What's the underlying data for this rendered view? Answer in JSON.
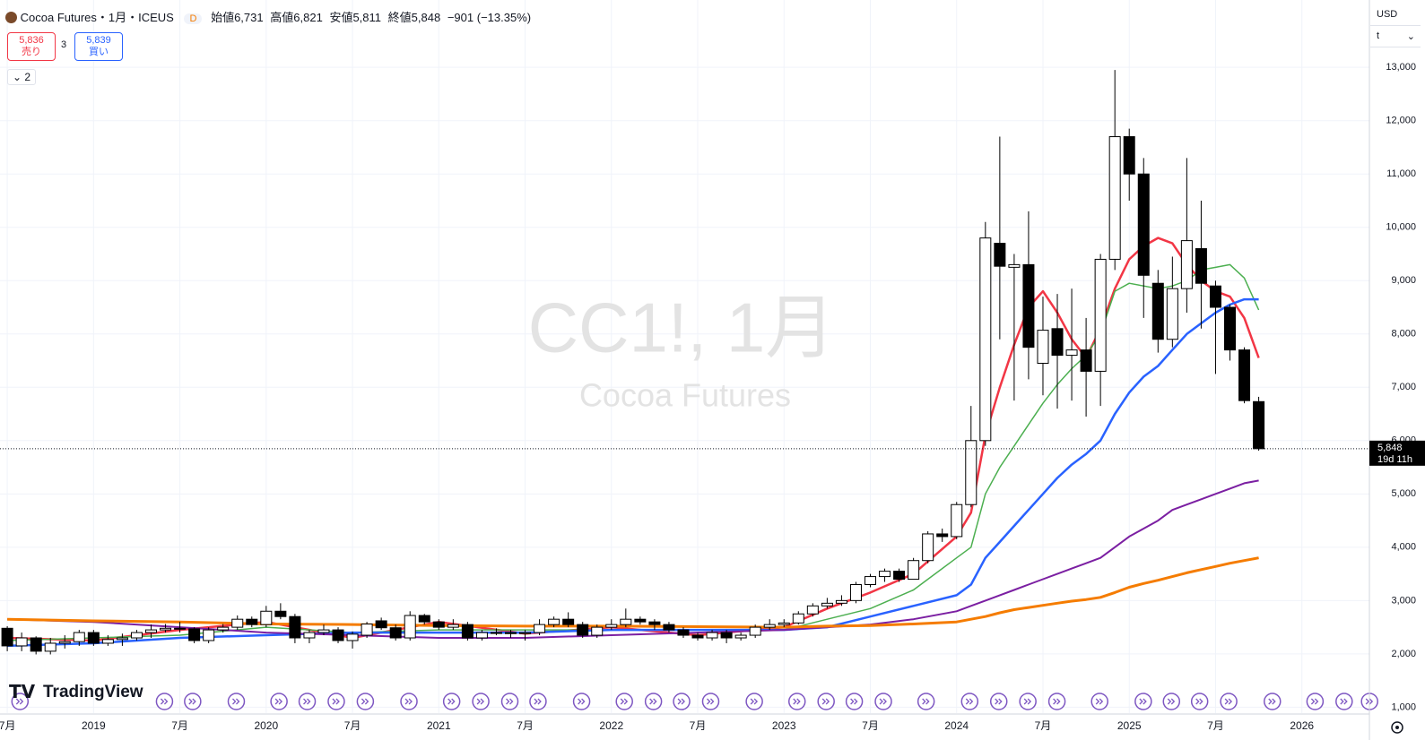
{
  "ui": {
    "symbol": "Cocoa Futures・1月・ICEUS",
    "badge": "D",
    "open_label": "始値",
    "open": "6,731",
    "high_label": "高値",
    "high": "6,821",
    "low_label": "安値",
    "low": "5,811",
    "close_label": "終値",
    "close": "5,848",
    "change": "−901 (−13.35%)",
    "sell_price": "5,836",
    "sell_label": "売り",
    "spread": "3",
    "buy_price": "5,839",
    "buy_label": "買い",
    "indicators_count": "2",
    "watermark_symbol": "CC1!, 1月",
    "watermark_name": "Cocoa Futures",
    "currency": "USD",
    "unit": "t",
    "last_price": "5,848",
    "countdown": "19d 11h",
    "logo": "TradingView"
  },
  "chart_data": {
    "type": "candlestick",
    "up_color": "#ffffff",
    "down_color": "#000000",
    "grid": true,
    "ylim": [
      889,
      14263
    ],
    "yticks": [
      {
        "value": 1000,
        "label": "1,000"
      },
      {
        "value": 2000,
        "label": "2,000"
      },
      {
        "value": 3000,
        "label": "3,000"
      },
      {
        "value": 4000,
        "label": "4,000"
      },
      {
        "value": 5000,
        "label": "5,000"
      },
      {
        "value": 6000,
        "label": "6,000"
      },
      {
        "value": 7000,
        "label": "7,000"
      },
      {
        "value": 8000,
        "label": "8,000"
      },
      {
        "value": 9000,
        "label": "9,000"
      },
      {
        "value": 10000,
        "label": "10,000"
      },
      {
        "value": 11000,
        "label": "11,000"
      },
      {
        "value": 12000,
        "label": "12,000"
      },
      {
        "value": 13000,
        "label": "13,000"
      }
    ],
    "xticks": [
      {
        "value": "2018-07",
        "label": "7月"
      },
      {
        "value": "2019-01",
        "label": "2019"
      },
      {
        "value": "2019-07",
        "label": "7月"
      },
      {
        "value": "2020-01",
        "label": "2020"
      },
      {
        "value": "2020-07",
        "label": "7月"
      },
      {
        "value": "2021-01",
        "label": "2021"
      },
      {
        "value": "2021-07",
        "label": "7月"
      },
      {
        "value": "2022-01",
        "label": "2022"
      },
      {
        "value": "2022-07",
        "label": "7月"
      },
      {
        "value": "2023-01",
        "label": "2023"
      },
      {
        "value": "2023-07",
        "label": "7月"
      },
      {
        "value": "2024-01",
        "label": "2024"
      },
      {
        "value": "2024-07",
        "label": "7月"
      },
      {
        "value": "2025-01",
        "label": "2025"
      },
      {
        "value": "2025-07",
        "label": "7月"
      },
      {
        "value": "2026-01",
        "label": "2026"
      }
    ],
    "x": [
      "2018-07",
      "2018-08",
      "2018-09",
      "2018-10",
      "2018-11",
      "2018-12",
      "2019-01",
      "2019-02",
      "2019-03",
      "2019-04",
      "2019-05",
      "2019-06",
      "2019-07",
      "2019-08",
      "2019-09",
      "2019-10",
      "2019-11",
      "2019-12",
      "2020-01",
      "2020-02",
      "2020-03",
      "2020-04",
      "2020-05",
      "2020-06",
      "2020-07",
      "2020-08",
      "2020-09",
      "2020-10",
      "2020-11",
      "2020-12",
      "2021-01",
      "2021-02",
      "2021-03",
      "2021-04",
      "2021-05",
      "2021-06",
      "2021-07",
      "2021-08",
      "2021-09",
      "2021-10",
      "2021-11",
      "2021-12",
      "2022-01",
      "2022-02",
      "2022-03",
      "2022-04",
      "2022-05",
      "2022-06",
      "2022-07",
      "2022-08",
      "2022-09",
      "2022-10",
      "2022-11",
      "2022-12",
      "2023-01",
      "2023-02",
      "2023-03",
      "2023-04",
      "2023-05",
      "2023-06",
      "2023-07",
      "2023-08",
      "2023-09",
      "2023-10",
      "2023-11",
      "2023-12",
      "2024-01",
      "2024-02",
      "2024-03",
      "2024-04",
      "2024-05",
      "2024-06",
      "2024-07",
      "2024-08",
      "2024-09",
      "2024-10",
      "2024-11",
      "2024-12",
      "2025-01",
      "2025-02",
      "2025-03",
      "2025-04",
      "2025-05",
      "2025-06",
      "2025-07",
      "2025-08",
      "2025-09",
      "2025-10"
    ],
    "open": [
      2480,
      2150,
      2300,
      2050,
      2200,
      2230,
      2400,
      2200,
      2270,
      2300,
      2400,
      2450,
      2480,
      2470,
      2250,
      2450,
      2500,
      2650,
      2550,
      2800,
      2700,
      2300,
      2400,
      2450,
      2250,
      2350,
      2620,
      2490,
      2300,
      2720,
      2600,
      2500,
      2550,
      2300,
      2400,
      2400,
      2380,
      2400,
      2550,
      2650,
      2550,
      2350,
      2500,
      2550,
      2650,
      2600,
      2550,
      2450,
      2350,
      2300,
      2400,
      2300,
      2350,
      2500,
      2550,
      2580,
      2750,
      2900,
      2950,
      3000,
      3300,
      3450,
      3550,
      3400,
      3750,
      4250,
      4200,
      4800,
      6000,
      9700,
      9250,
      9300,
      7450,
      8100,
      7600,
      7700,
      7300,
      9400,
      11700,
      11000,
      8950,
      7900,
      8850,
      9600,
      8900,
      8500,
      7700,
      6731
    ],
    "high": [
      2520,
      2400,
      2330,
      2300,
      2350,
      2450,
      2450,
      2350,
      2380,
      2450,
      2550,
      2560,
      2600,
      2500,
      2500,
      2560,
      2720,
      2700,
      2900,
      2950,
      2750,
      2450,
      2550,
      2500,
      2420,
      2600,
      2680,
      2550,
      2800,
      2750,
      2650,
      2650,
      2600,
      2450,
      2480,
      2450,
      2450,
      2650,
      2700,
      2780,
      2600,
      2550,
      2650,
      2850,
      2700,
      2650,
      2600,
      2500,
      2400,
      2450,
      2450,
      2400,
      2550,
      2650,
      2650,
      2800,
      2950,
      3050,
      3100,
      3350,
      3500,
      3600,
      3600,
      3800,
      4300,
      4350,
      4850,
      6650,
      10100,
      11700,
      9500,
      10300,
      8700,
      8750,
      8850,
      8300,
      9500,
      12950,
      11850,
      11300,
      9200,
      9450,
      11300,
      10500,
      9000,
      8550,
      7750,
      6821
    ],
    "low": [
      2050,
      2050,
      1990,
      1990,
      2100,
      2150,
      2150,
      2150,
      2150,
      2250,
      2300,
      2400,
      2400,
      2200,
      2200,
      2400,
      2450,
      2500,
      2500,
      2650,
      2200,
      2200,
      2350,
      2200,
      2100,
      2300,
      2450,
      2250,
      2250,
      2550,
      2450,
      2450,
      2250,
      2250,
      2350,
      2300,
      2250,
      2350,
      2500,
      2500,
      2300,
      2300,
      2450,
      2500,
      2550,
      2450,
      2400,
      2300,
      2250,
      2250,
      2200,
      2250,
      2300,
      2450,
      2500,
      2550,
      2700,
      2850,
      2900,
      2950,
      3250,
      3350,
      3350,
      3400,
      3700,
      4100,
      4150,
      4750,
      5900,
      7900,
      6750,
      7150,
      6850,
      6600,
      6750,
      6450,
      6650,
      9200,
      10500,
      8300,
      7650,
      7750,
      8400,
      8100,
      7250,
      7500,
      6700,
      5811
    ],
    "close": [
      2150,
      2300,
      2050,
      2200,
      2230,
      2400,
      2200,
      2270,
      2300,
      2400,
      2450,
      2480,
      2470,
      2250,
      2450,
      2500,
      2650,
      2550,
      2800,
      2700,
      2300,
      2400,
      2450,
      2250,
      2370,
      2560,
      2490,
      2300,
      2720,
      2600,
      2500,
      2550,
      2300,
      2400,
      2400,
      2380,
      2400,
      2550,
      2650,
      2550,
      2350,
      2500,
      2550,
      2650,
      2600,
      2550,
      2450,
      2350,
      2300,
      2400,
      2300,
      2350,
      2500,
      2550,
      2580,
      2750,
      2900,
      2950,
      3000,
      3300,
      3450,
      3550,
      3400,
      3750,
      4250,
      4200,
      4800,
      6000,
      9800,
      9270,
      9300,
      7750,
      8070,
      7600,
      7700,
      7300,
      9400,
      11700,
      11000,
      9100,
      7900,
      8850,
      9750,
      8950,
      8500,
      7700,
      6750,
      5848
    ],
    "series": [
      {
        "color": "#f23645",
        "width": 2.5,
        "x": [
          "2018-07",
          "2019-01",
          "2019-07",
          "2020-01",
          "2020-07",
          "2021-01",
          "2021-07",
          "2022-01",
          "2022-07",
          "2023-01",
          "2023-04",
          "2023-07",
          "2023-10",
          "2024-01",
          "2024-02",
          "2024-03",
          "2024-04",
          "2024-05",
          "2024-06",
          "2024-07",
          "2024-08",
          "2024-09",
          "2024-10",
          "2024-11",
          "2024-12",
          "2025-01",
          "2025-02",
          "2025-03",
          "2025-04",
          "2025-05",
          "2025-06",
          "2025-07",
          "2025-08",
          "2025-09",
          "2025-10"
        ],
        "values": [
          2300,
          2250,
          2450,
          2600,
          2300,
          2600,
          2380,
          2500,
          2350,
          2500,
          2850,
          3150,
          3500,
          4200,
          4650,
          6100,
          7000,
          7800,
          8500,
          8800,
          8400,
          7900,
          7550,
          8100,
          8850,
          9400,
          9650,
          9800,
          9700,
          9300,
          9000,
          8800,
          8700,
          8300,
          7550
        ]
      },
      {
        "color": "#4caf50",
        "width": 1.5,
        "x": [
          "2018-07",
          "2019-01",
          "2019-07",
          "2020-01",
          "2020-07",
          "2021-01",
          "2021-07",
          "2022-01",
          "2022-07",
          "2023-01",
          "2023-04",
          "2023-07",
          "2023-10",
          "2024-01",
          "2024-02",
          "2024-03",
          "2024-04",
          "2024-05",
          "2024-06",
          "2024-07",
          "2024-08",
          "2024-09",
          "2024-10",
          "2024-11",
          "2024-12",
          "2025-01",
          "2025-02",
          "2025-03",
          "2025-04",
          "2025-05",
          "2025-06",
          "2025-07",
          "2025-08",
          "2025-09",
          "2025-10"
        ],
        "values": [
          2250,
          2300,
          2350,
          2500,
          2400,
          2450,
          2450,
          2450,
          2450,
          2450,
          2650,
          2850,
          3200,
          3800,
          4000,
          5000,
          5500,
          5900,
          6300,
          6700,
          7050,
          7350,
          7600,
          8000,
          8800,
          8950,
          8900,
          8850,
          8900,
          9000,
          9200,
          9250,
          9300,
          9050,
          8450
        ]
      },
      {
        "color": "#2962ff",
        "width": 2.5,
        "x": [
          "2018-07",
          "2019-01",
          "2019-07",
          "2020-01",
          "2020-07",
          "2021-01",
          "2021-07",
          "2022-01",
          "2022-07",
          "2023-01",
          "2023-04",
          "2023-07",
          "2023-10",
          "2024-01",
          "2024-02",
          "2024-03",
          "2024-04",
          "2024-05",
          "2024-06",
          "2024-07",
          "2024-08",
          "2024-09",
          "2024-10",
          "2024-11",
          "2024-12",
          "2025-01",
          "2025-02",
          "2025-03",
          "2025-04",
          "2025-05",
          "2025-06",
          "2025-07",
          "2025-08",
          "2025-09",
          "2025-10"
        ],
        "values": [
          2150,
          2200,
          2300,
          2350,
          2400,
          2400,
          2400,
          2450,
          2450,
          2450,
          2500,
          2700,
          2900,
          3100,
          3300,
          3800,
          4100,
          4400,
          4700,
          5000,
          5300,
          5550,
          5750,
          6000,
          6500,
          6900,
          7200,
          7400,
          7700,
          8000,
          8200,
          8400,
          8550,
          8650,
          8650
        ]
      },
      {
        "color": "#7b1fa2",
        "width": 2,
        "x": [
          "2018-07",
          "2019-01",
          "2019-07",
          "2020-01",
          "2020-07",
          "2021-01",
          "2021-07",
          "2022-01",
          "2022-07",
          "2023-01",
          "2023-04",
          "2023-07",
          "2023-10",
          "2024-01",
          "2024-02",
          "2024-03",
          "2024-04",
          "2024-05",
          "2024-06",
          "2024-07",
          "2024-08",
          "2024-09",
          "2024-10",
          "2024-11",
          "2024-12",
          "2025-01",
          "2025-02",
          "2025-03",
          "2025-04",
          "2025-05",
          "2025-06",
          "2025-07",
          "2025-08",
          "2025-09",
          "2025-10"
        ],
        "values": [
          2650,
          2600,
          2500,
          2400,
          2350,
          2300,
          2300,
          2350,
          2400,
          2450,
          2500,
          2550,
          2650,
          2800,
          2900,
          3000,
          3100,
          3200,
          3300,
          3400,
          3500,
          3600,
          3700,
          3800,
          4000,
          4200,
          4350,
          4500,
          4700,
          4800,
          4900,
          5000,
          5100,
          5200,
          5250
        ]
      },
      {
        "color": "#f57c00",
        "width": 3,
        "x": [
          "2018-07",
          "2019-01",
          "2019-07",
          "2020-01",
          "2020-07",
          "2021-01",
          "2021-07",
          "2022-01",
          "2022-07",
          "2023-01",
          "2023-04",
          "2023-07",
          "2023-10",
          "2024-01",
          "2024-02",
          "2024-03",
          "2024-04",
          "2024-05",
          "2024-06",
          "2024-07",
          "2024-08",
          "2024-09",
          "2024-10",
          "2024-11",
          "2024-12",
          "2025-01",
          "2025-02",
          "2025-03",
          "2025-04",
          "2025-05",
          "2025-06",
          "2025-07",
          "2025-08",
          "2025-09",
          "2025-10"
        ],
        "values": [
          2650,
          2620,
          2600,
          2560,
          2550,
          2530,
          2520,
          2520,
          2510,
          2500,
          2520,
          2530,
          2560,
          2600,
          2650,
          2700,
          2770,
          2830,
          2870,
          2910,
          2950,
          2990,
          3020,
          3060,
          3150,
          3250,
          3320,
          3380,
          3450,
          3520,
          3580,
          3640,
          3700,
          3750,
          3800
        ]
      }
    ]
  }
}
